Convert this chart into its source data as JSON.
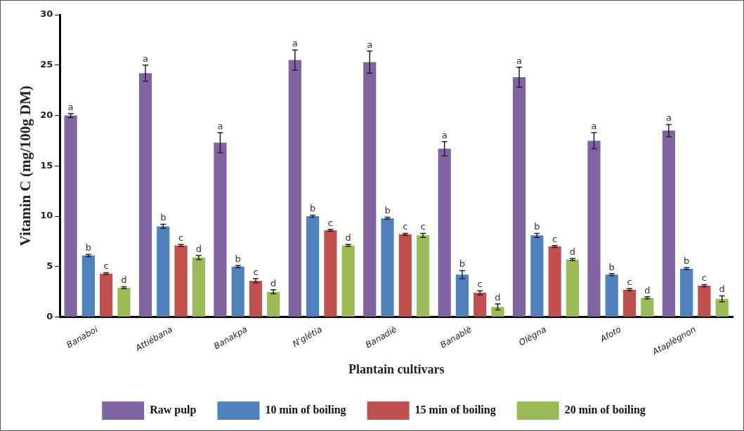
{
  "chart_data": {
    "type": "bar",
    "xlabel": "Plantain cultivars",
    "ylabel": "Vitamin C (mg/100g DM)",
    "categories": [
      "Banaboi",
      "Attiébana",
      "Banakpa",
      "N'glétia",
      "Banadiè",
      "Banablè",
      "Olègna",
      "Afoto",
      "Ataplègnon"
    ],
    "series": [
      {
        "name": "Raw pulp",
        "color": "#8064a2",
        "values": [
          20.0,
          24.2,
          17.3,
          25.5,
          25.3,
          16.7,
          23.8,
          17.5,
          18.5
        ],
        "errors": [
          0.2,
          0.8,
          1.0,
          1.0,
          1.1,
          0.7,
          1.0,
          0.8,
          0.6
        ],
        "value_labels": [
          "a",
          "a",
          "a",
          "a",
          "a",
          "a",
          "a",
          "a",
          "a"
        ]
      },
      {
        "name": "10 min of boiling",
        "color": "#4f81bd",
        "values": [
          6.1,
          9.0,
          5.0,
          10.0,
          9.8,
          4.2,
          8.1,
          4.2,
          4.8
        ],
        "errors": [
          0.1,
          0.2,
          0.1,
          0.1,
          0.1,
          0.4,
          0.2,
          0.1,
          0.1
        ],
        "value_labels": [
          "b",
          "b",
          "b",
          "b",
          "b",
          "b",
          "b",
          "b",
          "b"
        ]
      },
      {
        "name": "15 min of boiling",
        "color": "#c0504d",
        "values": [
          4.3,
          7.1,
          3.6,
          8.6,
          8.2,
          2.4,
          7.0,
          2.7,
          3.1
        ],
        "errors": [
          0.1,
          0.1,
          0.2,
          0.1,
          0.1,
          0.2,
          0.1,
          0.1,
          0.1
        ],
        "value_labels": [
          "c",
          "c",
          "c",
          "c",
          "c",
          "c",
          "c",
          "c",
          "c"
        ]
      },
      {
        "name": "20 min of boiling",
        "color": "#9bbb59",
        "values": [
          2.9,
          5.9,
          2.5,
          7.1,
          8.1,
          1.0,
          5.7,
          1.9,
          1.8
        ],
        "errors": [
          0.1,
          0.2,
          0.2,
          0.1,
          0.2,
          0.3,
          0.1,
          0.1,
          0.3
        ],
        "value_labels": [
          "d",
          "d",
          "d",
          "d",
          "c",
          "d",
          "d",
          "d",
          "d"
        ]
      }
    ],
    "ylim": [
      0,
      30
    ],
    "yticks": [
      0,
      5,
      10,
      15,
      20,
      25,
      30
    ],
    "grid": false,
    "legend": "bottom"
  }
}
